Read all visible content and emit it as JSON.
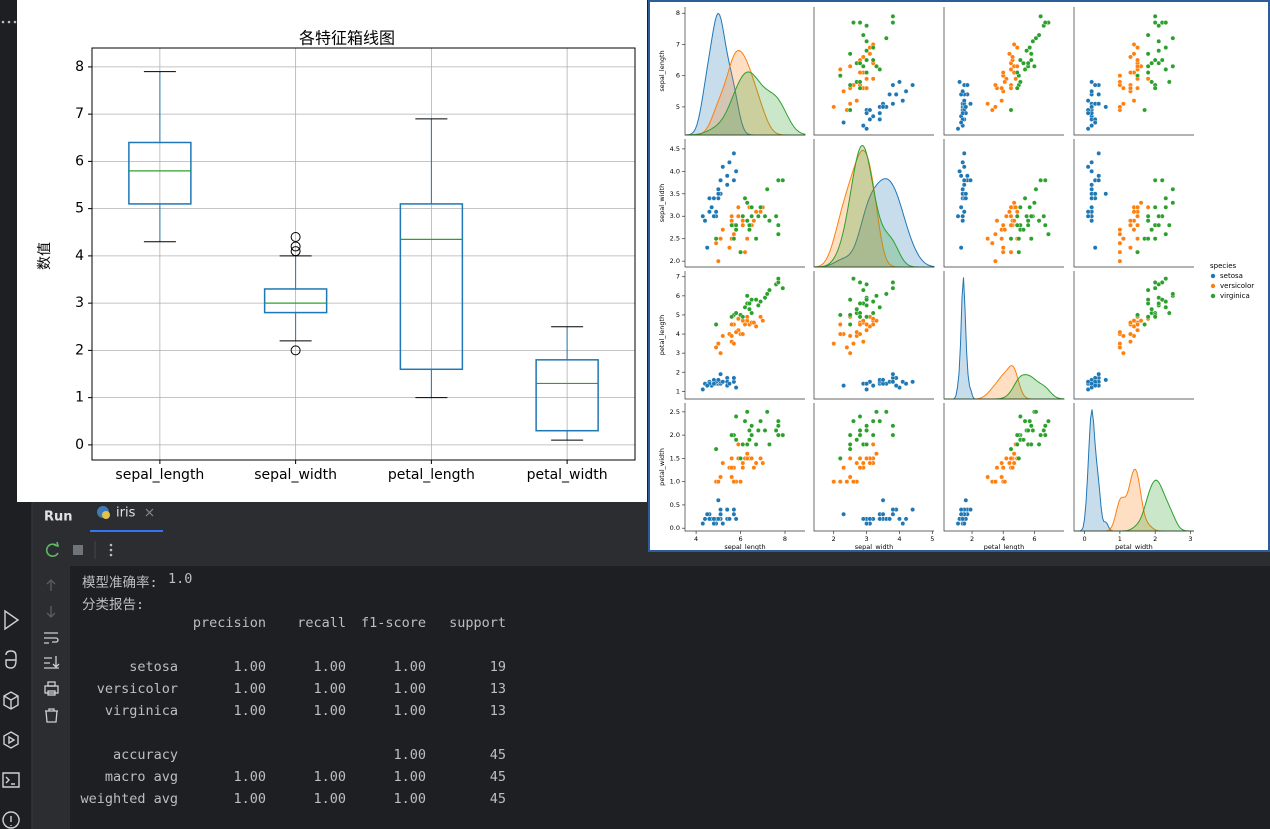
{
  "chart_data": {
    "type": "box",
    "title": "各特征箱线图",
    "ylabel": "数值",
    "categories": [
      "sepal_length",
      "sepal_width",
      "petal_length",
      "petal_width"
    ],
    "boxes": [
      {
        "whislo": 4.3,
        "q1": 5.1,
        "med": 5.8,
        "q3": 6.4,
        "whishi": 7.9,
        "fliers": []
      },
      {
        "whislo": 2.2,
        "q1": 2.8,
        "med": 3.0,
        "q3": 3.3,
        "whishi": 4.0,
        "fliers": [
          4.4,
          4.1,
          4.2,
          2.0
        ]
      },
      {
        "whislo": 1.0,
        "q1": 1.6,
        "med": 4.35,
        "q3": 5.1,
        "whishi": 6.9,
        "fliers": []
      },
      {
        "whislo": 0.1,
        "q1": 0.3,
        "med": 1.3,
        "q3": 1.8,
        "whishi": 2.5,
        "fliers": []
      }
    ],
    "ylim": [
      -0.32,
      8.4
    ],
    "yticks": [
      0,
      1,
      2,
      3,
      4,
      5,
      6,
      7,
      8
    ],
    "grid": true,
    "box_color": "#1f77b4",
    "median_color": "#2ca02c"
  },
  "pairplot": {
    "variables": [
      {
        "name": "sepal_length",
        "xlim": [
          3.5,
          8.9
        ],
        "xticks": [
          4,
          6,
          8
        ],
        "ylim": [
          4.1,
          8.2
        ],
        "yticks": [
          5,
          6,
          7,
          8
        ]
      },
      {
        "name": "sepal_width",
        "xlim": [
          1.4,
          5.05
        ],
        "xticks": [
          2,
          3,
          4,
          5
        ],
        "ylim": [
          1.87,
          4.72
        ],
        "yticks": [
          {
            "value": 2,
            "label": "2.0"
          },
          {
            "value": 2.5,
            "label": "2.5"
          },
          {
            "value": 3,
            "label": "3.0"
          },
          {
            "value": 3.5,
            "label": "3.5"
          },
          {
            "value": 4,
            "label": "4.0"
          },
          {
            "value": 4.5,
            "label": "4.5"
          }
        ]
      },
      {
        "name": "petal_length",
        "xlim": [
          0.2,
          7.9
        ],
        "xticks": [
          2,
          4,
          6
        ],
        "ylim": [
          0.6,
          7.3
        ],
        "yticks": [
          1,
          2,
          3,
          4,
          5,
          6,
          7
        ]
      },
      {
        "name": "petal_width",
        "xlim": [
          -0.3,
          3.1
        ],
        "xticks": [
          0,
          1,
          2,
          3
        ],
        "ylim": [
          -0.06,
          2.69
        ],
        "yticks": [
          {
            "value": 0,
            "label": "0.0"
          },
          {
            "value": 0.5,
            "label": "0.5"
          },
          {
            "value": 1,
            "label": "1.0"
          },
          {
            "value": 1.5,
            "label": "1.5"
          },
          {
            "value": 2,
            "label": "2.0"
          },
          {
            "value": 2.5,
            "label": "2.5"
          }
        ]
      }
    ],
    "legend_title": "species",
    "groups": [
      {
        "name": "setosa",
        "color": "#1f77b4",
        "rows": [
          [
            5.1,
            3.5,
            1.4,
            0.2
          ],
          [
            4.9,
            3.0,
            1.4,
            0.2
          ],
          [
            4.7,
            3.2,
            1.3,
            0.2
          ],
          [
            4.6,
            3.1,
            1.5,
            0.2
          ],
          [
            5.0,
            3.6,
            1.4,
            0.2
          ],
          [
            5.4,
            3.9,
            1.7,
            0.4
          ],
          [
            4.6,
            3.4,
            1.4,
            0.3
          ],
          [
            5.0,
            3.4,
            1.5,
            0.2
          ],
          [
            4.4,
            2.9,
            1.4,
            0.2
          ],
          [
            4.9,
            3.1,
            1.5,
            0.1
          ],
          [
            5.4,
            3.7,
            1.5,
            0.2
          ],
          [
            4.8,
            3.4,
            1.6,
            0.2
          ],
          [
            4.8,
            3.0,
            1.4,
            0.1
          ],
          [
            4.3,
            3.0,
            1.1,
            0.1
          ],
          [
            5.8,
            4.0,
            1.2,
            0.2
          ],
          [
            5.7,
            4.4,
            1.5,
            0.4
          ],
          [
            5.4,
            3.9,
            1.3,
            0.4
          ],
          [
            5.1,
            3.5,
            1.4,
            0.3
          ],
          [
            5.7,
            3.8,
            1.7,
            0.3
          ],
          [
            5.1,
            3.8,
            1.5,
            0.3
          ],
          [
            5.2,
            4.1,
            1.5,
            0.1
          ],
          [
            5.5,
            4.2,
            1.4,
            0.2
          ],
          [
            4.5,
            2.3,
            1.3,
            0.3
          ],
          [
            5.0,
            3.5,
            1.6,
            0.6
          ],
          [
            5.1,
            3.8,
            1.9,
            0.4
          ]
        ]
      },
      {
        "name": "versicolor",
        "color": "#ff7f0e",
        "rows": [
          [
            7.0,
            3.2,
            4.7,
            1.4
          ],
          [
            6.4,
            3.2,
            4.5,
            1.5
          ],
          [
            6.9,
            3.1,
            4.9,
            1.5
          ],
          [
            5.5,
            2.3,
            4.0,
            1.3
          ],
          [
            6.5,
            2.8,
            4.6,
            1.5
          ],
          [
            5.7,
            2.8,
            4.5,
            1.3
          ],
          [
            6.3,
            3.3,
            4.7,
            1.6
          ],
          [
            4.9,
            2.4,
            3.3,
            1.0
          ],
          [
            6.6,
            2.9,
            4.6,
            1.3
          ],
          [
            5.2,
            2.7,
            3.9,
            1.4
          ],
          [
            5.0,
            2.0,
            3.5,
            1.0
          ],
          [
            5.9,
            3.0,
            4.2,
            1.5
          ],
          [
            6.0,
            2.2,
            4.0,
            1.0
          ],
          [
            6.1,
            2.9,
            4.7,
            1.4
          ],
          [
            5.6,
            2.9,
            3.6,
            1.3
          ],
          [
            6.7,
            3.1,
            4.4,
            1.4
          ],
          [
            5.6,
            3.0,
            4.5,
            1.5
          ],
          [
            5.8,
            2.7,
            4.1,
            1.0
          ],
          [
            6.2,
            2.2,
            4.5,
            1.5
          ],
          [
            5.6,
            2.5,
            3.9,
            1.1
          ],
          [
            5.9,
            3.2,
            4.8,
            1.8
          ],
          [
            6.1,
            2.8,
            4.0,
            1.3
          ],
          [
            6.3,
            2.5,
            4.9,
            1.5
          ],
          [
            5.7,
            2.6,
            3.5,
            1.0
          ],
          [
            5.1,
            2.5,
            3.0,
            1.1
          ]
        ]
      },
      {
        "name": "virginica",
        "color": "#2ca02c",
        "rows": [
          [
            6.3,
            3.3,
            6.0,
            2.5
          ],
          [
            5.8,
            2.7,
            5.1,
            1.9
          ],
          [
            7.1,
            3.0,
            5.9,
            2.1
          ],
          [
            6.3,
            2.9,
            5.6,
            1.8
          ],
          [
            6.5,
            3.0,
            5.8,
            2.2
          ],
          [
            7.6,
            3.0,
            6.6,
            2.1
          ],
          [
            4.9,
            2.5,
            4.5,
            1.7
          ],
          [
            7.3,
            2.9,
            6.3,
            1.8
          ],
          [
            6.7,
            2.5,
            5.8,
            1.8
          ],
          [
            7.2,
            3.6,
            6.1,
            2.5
          ],
          [
            6.5,
            3.2,
            5.1,
            2.0
          ],
          [
            6.4,
            2.7,
            5.3,
            1.9
          ],
          [
            6.8,
            3.0,
            5.5,
            2.1
          ],
          [
            5.7,
            2.5,
            5.0,
            2.0
          ],
          [
            5.8,
            2.8,
            5.1,
            2.4
          ],
          [
            7.7,
            3.8,
            6.7,
            2.2
          ],
          [
            7.7,
            2.6,
            6.9,
            2.3
          ],
          [
            6.0,
            2.2,
            5.0,
            1.5
          ],
          [
            6.9,
            3.2,
            5.7,
            2.3
          ],
          [
            5.6,
            2.8,
            4.9,
            2.0
          ],
          [
            7.7,
            2.8,
            6.7,
            2.0
          ],
          [
            7.9,
            3.8,
            6.4,
            2.0
          ],
          [
            6.1,
            3.0,
            4.9,
            1.8
          ],
          [
            6.4,
            2.8,
            5.6,
            2.1
          ],
          [
            6.2,
            3.4,
            5.4,
            2.3
          ]
        ]
      }
    ]
  },
  "run_panel": {
    "title": "Run",
    "tab": "iris"
  },
  "console": {
    "accuracy_line": {
      "label": "模型准确率:",
      "value": "1.0"
    },
    "report_title": "分类报告:",
    "columns": [
      "precision",
      "recall",
      "f1-score",
      "support"
    ],
    "rows": [
      {
        "label": "setosa",
        "cells": [
          "1.00",
          "1.00",
          "1.00",
          "19"
        ]
      },
      {
        "label": "versicolor",
        "cells": [
          "1.00",
          "1.00",
          "1.00",
          "13"
        ]
      },
      {
        "label": "virginica",
        "cells": [
          "1.00",
          "1.00",
          "1.00",
          "13"
        ]
      }
    ],
    "summary": [
      {
        "label": "accuracy",
        "f1": "1.00",
        "support": "45"
      },
      {
        "label": "macro avg",
        "cells": [
          "1.00",
          "1.00",
          "1.00",
          "45"
        ]
      },
      {
        "label": "weighted avg",
        "cells": [
          "1.00",
          "1.00",
          "1.00",
          "45"
        ]
      }
    ]
  }
}
